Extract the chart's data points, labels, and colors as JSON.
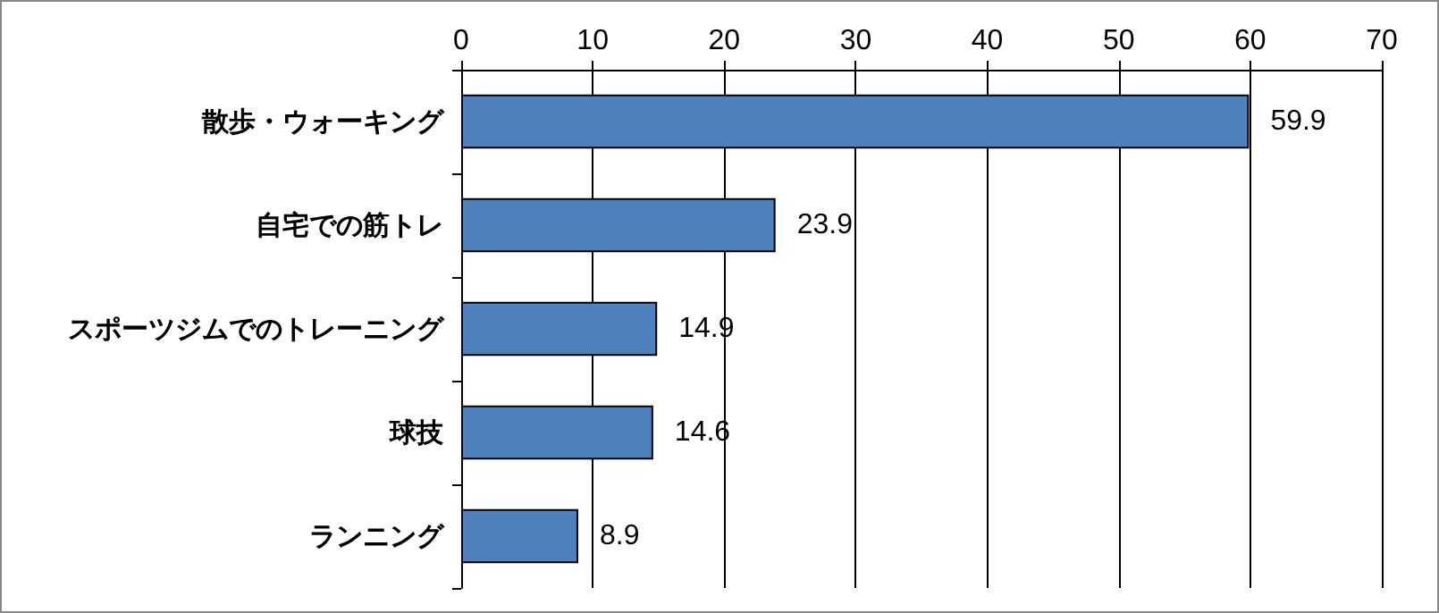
{
  "chart_data": {
    "type": "bar",
    "orientation": "horizontal",
    "categories": [
      "散歩・ウォーキング",
      "自宅での筋トレ",
      "スポーツジムでのトレーニング",
      "球技",
      "ランニング"
    ],
    "values": [
      59.9,
      23.9,
      14.9,
      14.6,
      8.9
    ],
    "color": "#4f81bd",
    "xlim": [
      0,
      70
    ],
    "xticks": [
      0,
      10,
      20,
      30,
      40,
      50,
      60,
      70
    ],
    "grid": "x",
    "data_labels": true
  }
}
